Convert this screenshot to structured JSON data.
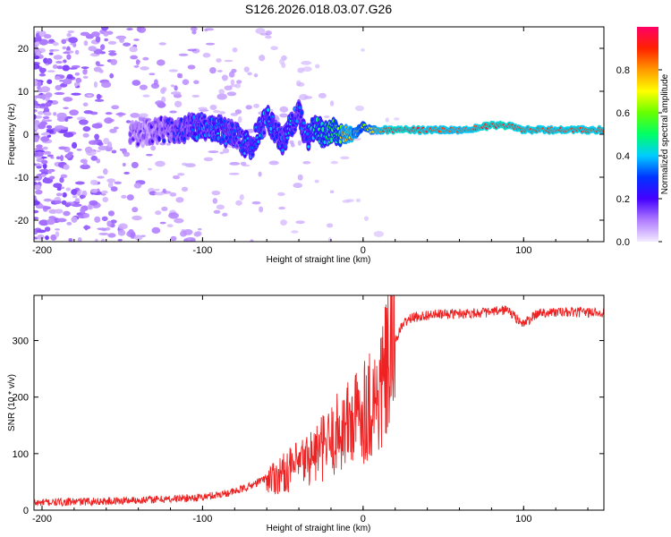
{
  "title": "S126.2026.018.03.07.G26",
  "colors": {
    "background": "#ffffff",
    "axis": "#000000",
    "snr_line": "#ee2222"
  },
  "chart_data": [
    {
      "type": "heatmap",
      "id": "spectrogram",
      "xlabel": "Height of straight line (km)",
      "ylabel": "Frequency (Hz)",
      "xlim": [
        -205,
        150
      ],
      "ylim": [
        -25,
        25
      ],
      "xticks": [
        -200,
        -100,
        0,
        100
      ],
      "yticks": [
        -20,
        -10,
        0,
        10,
        20
      ],
      "colorbar": {
        "label": "Normalized spectral amplitude",
        "range": [
          0,
          1
        ],
        "ticks": [
          0.0,
          0.2,
          0.4,
          0.6,
          0.8
        ]
      },
      "ridge": {
        "x": [
          -140,
          -130,
          -120,
          -110,
          -100,
          -90,
          -80,
          -70,
          -60,
          -55,
          -50,
          -45,
          -40,
          -35,
          -30,
          -25,
          -20,
          -15,
          -10,
          -5,
          0,
          5,
          10,
          20,
          40,
          60,
          80,
          90,
          100,
          120,
          150
        ],
        "freq": [
          0,
          1,
          1,
          1.5,
          2,
          1,
          0,
          -3,
          4,
          1,
          -2,
          2,
          5,
          -1,
          2,
          0,
          1,
          0,
          0,
          0,
          2,
          1,
          1,
          1,
          1,
          1,
          2,
          2,
          1,
          1,
          1
        ],
        "amplitude": [
          0.1,
          0.15,
          0.2,
          0.25,
          0.3,
          0.3,
          0.25,
          0.35,
          0.3,
          0.35,
          0.3,
          0.35,
          0.3,
          0.35,
          0.4,
          0.45,
          0.5,
          0.6,
          0.85,
          0.7,
          0.6,
          0.7,
          0.85,
          0.95,
          0.9,
          0.85,
          0.95,
          0.95,
          0.9,
          0.9,
          0.9
        ]
      }
    },
    {
      "type": "line",
      "id": "snr",
      "xlabel": "Height of straight line (km)",
      "ylabel": "SNR (10 * v/v)",
      "xlim": [
        -205,
        150
      ],
      "ylim": [
        0,
        380
      ],
      "xticks": [
        -200,
        -100,
        0,
        100
      ],
      "yticks": [
        0,
        100,
        200,
        300
      ],
      "series": [
        {
          "name": "SNR",
          "x": [
            -205,
            -180,
            -160,
            -140,
            -120,
            -100,
            -90,
            -80,
            -70,
            -60,
            -50,
            -40,
            -30,
            -20,
            -15,
            -10,
            -5,
            0,
            5,
            10,
            15,
            18,
            20,
            25,
            30,
            40,
            60,
            80,
            90,
            95,
            100,
            110,
            130,
            150
          ],
          "y": [
            10,
            12,
            13,
            15,
            17,
            20,
            25,
            30,
            40,
            55,
            65,
            80,
            100,
            120,
            140,
            150,
            160,
            180,
            190,
            200,
            250,
            280,
            300,
            330,
            340,
            345,
            348,
            350,
            355,
            340,
            330,
            350,
            350,
            350
          ]
        }
      ]
    }
  ]
}
